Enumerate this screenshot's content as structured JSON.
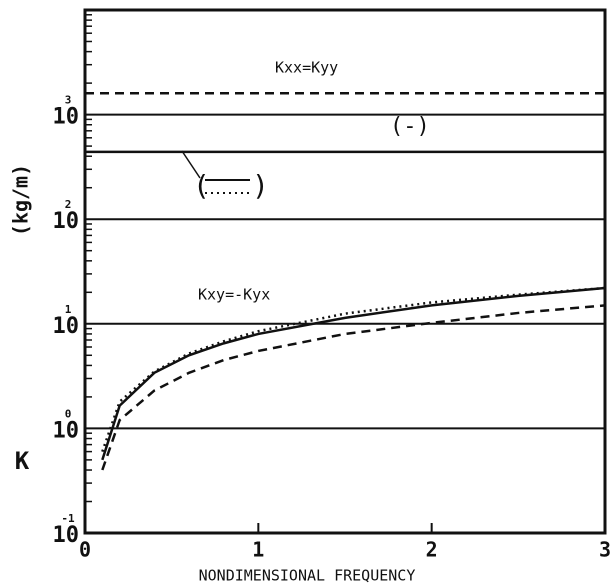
{
  "chart_data": {
    "type": "line",
    "xlabel": "NONDIMENSIONAL FREQUENCY",
    "ylabel": "K",
    "ylabel_unit": "(kg/m)",
    "xlim": [
      0,
      3
    ],
    "xticks": [
      0,
      1,
      2,
      3
    ],
    "ylim": [
      0.1,
      10000
    ],
    "log_y": true,
    "grid": true,
    "yticks": [
      {
        "value": 0.1,
        "label": "10",
        "exponent": "-1"
      },
      {
        "value": 1,
        "label": "10",
        "exponent": "0"
      },
      {
        "value": 10,
        "label": "10",
        "exponent": "1"
      },
      {
        "value": 100,
        "label": "10",
        "exponent": "2"
      },
      {
        "value": 1000,
        "label": "10",
        "exponent": "3"
      }
    ],
    "annotations": [
      "Kxx=Kyy",
      "(-)",
      "Kxy=-Kyx"
    ],
    "legend_parens": [
      "(",
      ")"
    ],
    "series": [
      {
        "color": "#111",
        "style": "dashed",
        "x": [
          0,
          3
        ],
        "values": [
          1600,
          1600
        ]
      },
      {
        "color": "#111",
        "style": "solid",
        "x": [
          0,
          3
        ],
        "values": [
          440,
          440
        ]
      },
      {
        "color": "#111",
        "style": "solid",
        "x": [
          0.1,
          0.2,
          0.4,
          0.6,
          0.8,
          1.0,
          1.5,
          2.0,
          2.5,
          3.0
        ],
        "values": [
          0.5,
          1.65,
          3.4,
          5.0,
          6.5,
          8,
          11.4,
          15,
          18.5,
          22
        ]
      },
      {
        "color": "#111",
        "style": "dotted",
        "x": [
          0.1,
          0.2,
          0.4,
          0.6,
          0.8,
          1.0,
          1.5,
          2.0,
          2.5,
          3.0
        ],
        "values": [
          0.6,
          1.8,
          3.5,
          5.2,
          6.8,
          8.5,
          12.5,
          16,
          19,
          22
        ]
      },
      {
        "color": "#111",
        "style": "dashed",
        "x": [
          0.1,
          0.2,
          0.4,
          0.6,
          0.8,
          1.0,
          1.5,
          2.0,
          2.5,
          3.0
        ],
        "values": [
          0.4,
          1.2,
          2.3,
          3.4,
          4.5,
          5.5,
          8,
          10.2,
          12.7,
          15
        ]
      }
    ]
  }
}
